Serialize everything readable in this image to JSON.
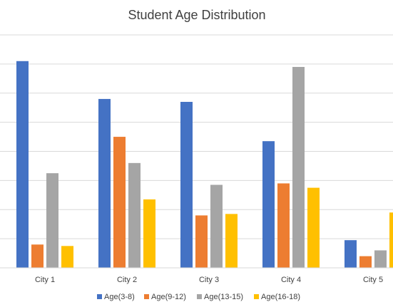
{
  "chart_data": {
    "type": "bar",
    "title": "Student Age Distribution",
    "xlabel": "",
    "ylabel": "",
    "categories": [
      "City 1",
      "City 2",
      "City 3",
      "City 4",
      "City 5"
    ],
    "series": [
      {
        "name": "Age(3-8)",
        "color": "#4472C4",
        "values": [
          7.1,
          5.8,
          5.7,
          4.35,
          0.95
        ]
      },
      {
        "name": "Age(9-12)",
        "color": "#ED7D31",
        "values": [
          0.8,
          4.5,
          1.8,
          2.9,
          0.4
        ]
      },
      {
        "name": "Age(13-15)",
        "color": "#A5A5A5",
        "values": [
          3.25,
          3.6,
          2.85,
          6.9,
          0.6
        ]
      },
      {
        "name": "Age(16-18)",
        "color": "#FFC000",
        "values": [
          0.75,
          2.35,
          1.85,
          2.75,
          1.9
        ]
      }
    ],
    "ylim": [
      0,
      8
    ],
    "y_tick_labels_visible": false,
    "grid": true,
    "legend_position": "bottom"
  }
}
